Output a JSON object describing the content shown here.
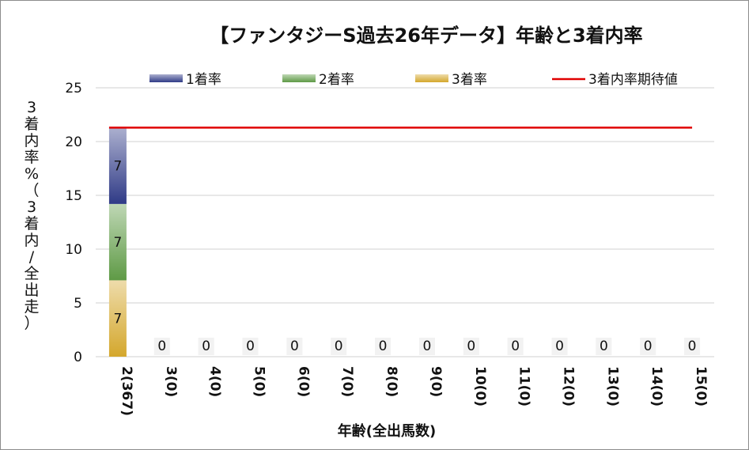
{
  "chart_data": {
    "type": "bar",
    "stacked": true,
    "title": "【ファンタジーS過去26年データ】年齢と3着内率",
    "xlabel": "年齢(全出馬数)",
    "ylabel": "3着内率 %（3着内/全出走）",
    "ylim": [
      0,
      25
    ],
    "yticks": [
      0,
      5,
      10,
      15,
      20,
      25
    ],
    "grid": true,
    "legend_position": "top",
    "categories": [
      "2(367)",
      "3(0)",
      "4(0)",
      "5(0)",
      "6(0)",
      "7(0)",
      "8(0)",
      "9(0)",
      "10(0)",
      "11(0)",
      "12(0)",
      "13(0)",
      "14(0)",
      "15(0)"
    ],
    "series": [
      {
        "name": "3着率",
        "color": "#d4a72c",
        "values": [
          7.1,
          0,
          0,
          0,
          0,
          0,
          0,
          0,
          0,
          0,
          0,
          0,
          0,
          0
        ]
      },
      {
        "name": "2着率",
        "color": "#5e9a45",
        "values": [
          7.1,
          0,
          0,
          0,
          0,
          0,
          0,
          0,
          0,
          0,
          0,
          0,
          0,
          0
        ]
      },
      {
        "name": "1着率",
        "color": "#2f3a86",
        "values": [
          7.1,
          0,
          0,
          0,
          0,
          0,
          0,
          0,
          0,
          0,
          0,
          0,
          0,
          0
        ]
      }
    ],
    "data_labels": [
      [
        "7",
        "0",
        "0",
        "0",
        "0",
        "0",
        "0",
        "0",
        "0",
        "0",
        "0",
        "0",
        "0",
        "0"
      ],
      [
        "7",
        "",
        "",
        "",
        "",
        "",
        "",
        "",
        "",
        "",
        "",
        "",
        "",
        ""
      ],
      [
        "7",
        "",
        "",
        "",
        "",
        "",
        "",
        "",
        "",
        "",
        "",
        "",
        "",
        ""
      ]
    ],
    "expected_line": {
      "name": "3着内率期待値",
      "color": "#e00000",
      "value": 21.3
    },
    "legend": [
      "1着率",
      "2着率",
      "3着率",
      "3着内率期待値"
    ]
  }
}
